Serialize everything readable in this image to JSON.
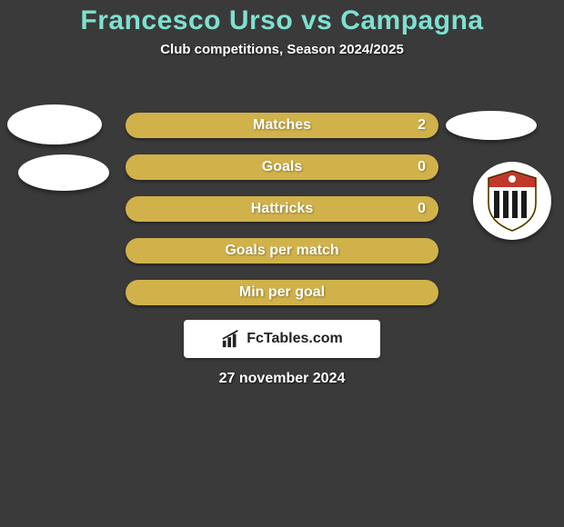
{
  "background_color": "#3a3a3a",
  "title": {
    "text": "Francesco Urso vs Campagna",
    "color": "#7fe0d0",
    "fontsize": 30
  },
  "subtitle": {
    "text": "Club competitions, Season 2024/2025",
    "fontsize": 15
  },
  "bars": [
    {
      "label": "Matches",
      "value_right": "2",
      "color": "#d1b24a"
    },
    {
      "label": "Goals",
      "value_right": "0",
      "color": "#d1b24a"
    },
    {
      "label": "Hattricks",
      "value_right": "0",
      "color": "#d1b24a"
    },
    {
      "label": "Goals per match",
      "value_right": "",
      "color": "#d1b24a"
    },
    {
      "label": "Min per goal",
      "value_right": "",
      "color": "#d1b24a"
    }
  ],
  "bar_style": {
    "label_fontsize": 16,
    "value_fontsize": 16
  },
  "brand": {
    "text": "FcTables.com",
    "fontsize": 16
  },
  "date": {
    "text": "27 november 2024",
    "fontsize": 16
  },
  "crest": {
    "top_color": "#c0392b",
    "stripe_dark": "#1a1a1a",
    "stripe_light": "#ffffff",
    "outline": "#c9a227"
  }
}
